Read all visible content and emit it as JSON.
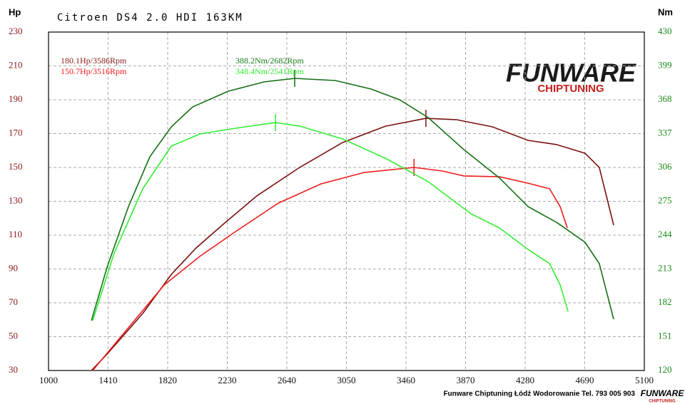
{
  "chart_data": {
    "type": "line",
    "title": "Citroen DS4 2.0 HDI 163KM",
    "ylabel": "Hp",
    "y2label": "Nm",
    "xlim": [
      1000,
      5100
    ],
    "xticks": [
      1000,
      1410,
      1820,
      2230,
      2640,
      3050,
      3460,
      3870,
      4280,
      4690,
      5100
    ],
    "ylim": [
      30,
      230
    ],
    "yticks": [
      30,
      50,
      70,
      90,
      110,
      130,
      150,
      170,
      190,
      210,
      230
    ],
    "y2lim": [
      120,
      430
    ],
    "y2ticks": [
      120,
      151,
      182,
      213,
      244,
      275,
      306,
      337,
      368,
      399,
      430
    ],
    "grid": true,
    "annotations": [
      {
        "text": "180.1Hp/3586Rpm",
        "color": "#8b1a1a"
      },
      {
        "text": "150.7Hp/3516Rpm",
        "color": "#ff1a1a"
      },
      {
        "text": "388.2Nm/2682Rpm",
        "color": "#1a7a1a"
      },
      {
        "text": "348.4Nm/2541Rpm",
        "color": "#33ee33"
      }
    ],
    "series": [
      {
        "color": "#7a1010",
        "x": [
          1295,
          1403,
          1648,
          1845,
          2016,
          2213,
          2434,
          2728,
          3023,
          3318,
          3597,
          3809,
          4054,
          4300,
          4496,
          4692,
          4790,
          4889
        ],
        "values": [
          30,
          39.7,
          63.7,
          86.8,
          102.4,
          117.2,
          133.2,
          150,
          164.7,
          174.4,
          179,
          178.2,
          174,
          166,
          163.5,
          158.4,
          150,
          115.9
        ]
      },
      {
        "color": "#ee1c1c",
        "x": [
          1304,
          1550,
          1795,
          2041,
          2287,
          2581,
          2876,
          3171,
          3515,
          3711,
          3858,
          4104,
          4300,
          4448,
          4521,
          4570
        ],
        "values": [
          30,
          55.3,
          80.5,
          97.4,
          112.1,
          128.9,
          140.3,
          147,
          150,
          147.9,
          145,
          144.5,
          140.7,
          137.4,
          126.8,
          114.2
        ]
      },
      {
        "color": "#157015",
        "axis": "y2",
        "x": [
          1295,
          1403,
          1550,
          1697,
          1845,
          1992,
          2237,
          2483,
          2694,
          2974,
          3220,
          3416,
          3612,
          3858,
          4104,
          4300,
          4496,
          4692,
          4790,
          4889
        ],
        "values": [
          165.7,
          214.6,
          270.1,
          315.8,
          343.2,
          361.5,
          375.8,
          384.3,
          387.6,
          385.6,
          377.8,
          368,
          351.7,
          322.3,
          296.2,
          270.1,
          255.7,
          237.5,
          217.9,
          167
        ]
      },
      {
        "color": "#33ee33",
        "axis": "y2",
        "x": [
          1304,
          1452,
          1648,
          1845,
          2041,
          2287,
          2562,
          2728,
          3023,
          3318,
          3612,
          3907,
          4104,
          4300,
          4448,
          4521,
          4575
        ],
        "values": [
          165.7,
          227.7,
          286.4,
          325.6,
          336.7,
          341.9,
          347.1,
          343.9,
          332.1,
          314.5,
          293,
          263.6,
          250.5,
          230.9,
          217.9,
          198.3,
          174.2
        ]
      }
    ],
    "logo": {
      "name": "FUNWARE",
      "sub": "CHIPTUNING"
    },
    "footer": "Funware Chiptuning Łódź Wodorowanie Tel. 793 005 903"
  }
}
